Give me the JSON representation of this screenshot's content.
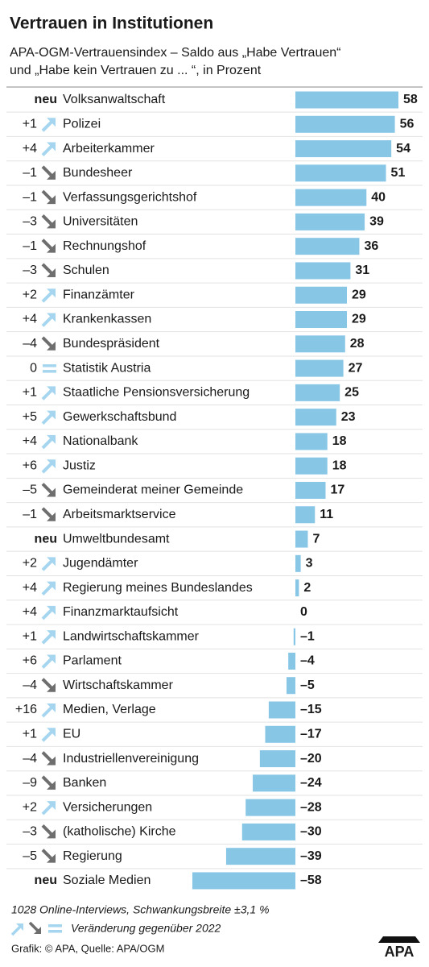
{
  "chart_data": {
    "type": "bar",
    "orientation": "horizontal",
    "title": "Vertrauen in Institutionen",
    "subtitle": [
      "APA-OGM-Vertrauensindex – Saldo aus „Habe Vertrauen“",
      "und „Habe kein Vertrauen zu ... “, in Prozent"
    ],
    "categories": [
      "Volksanwaltschaft",
      "Polizei",
      "Arbeiterkammer",
      "Bundesheer",
      "Verfassungsgerichtshof",
      "Universitäten",
      "Rechnungshof",
      "Schulen",
      "Finanzämter",
      "Krankenkassen",
      "Bundespräsident",
      "Statistik Austria",
      "Staatliche Pensionsversicherung",
      "Gewerkschaftsbund",
      "Nationalbank",
      "Justiz",
      "Gemeinderat meiner Gemeinde",
      "Arbeitsmarktservice",
      "Umweltbundesamt",
      "Jugendämter",
      "Regierung meines Bundeslandes",
      "Finanzmarktaufsicht",
      "Landwirtschaftskammer",
      "Parlament",
      "Wirtschaftskammer",
      "Medien, Verlage",
      "EU",
      "Industriellenvereinigung",
      "Banken",
      "Versicherungen",
      "(katholische) Kirche",
      "Regierung",
      "Soziale Medien"
    ],
    "changes": [
      "neu",
      "+1",
      "+4",
      "–1",
      "–1",
      "–3",
      "–1",
      "–3",
      "+2",
      "+4",
      "–4",
      "0",
      "+1",
      "+5",
      "+4",
      "+6",
      "–5",
      "–1",
      "neu",
      "+2",
      "+4",
      "+4",
      "+1",
      "+6",
      "–4",
      "+16",
      "+1",
      "–4",
      "–9",
      "+2",
      "–3",
      "–5",
      "neu"
    ],
    "values": [
      58,
      56,
      54,
      51,
      40,
      39,
      36,
      31,
      29,
      29,
      28,
      27,
      25,
      23,
      18,
      18,
      17,
      11,
      7,
      3,
      2,
      0,
      -1,
      -4,
      -5,
      -15,
      -17,
      -20,
      -24,
      -28,
      -30,
      -39,
      -58
    ],
    "value_labels": [
      "58",
      "56",
      "54",
      "51",
      "40",
      "39",
      "36",
      "31",
      "29",
      "29",
      "28",
      "27",
      "25",
      "23",
      "18",
      "18",
      "17",
      "11",
      "7",
      "3",
      "2",
      "0",
      "–1",
      "–4",
      "–5",
      "–15",
      "–17",
      "–20",
      "–24",
      "–28",
      "–30",
      "–39",
      "–58"
    ],
    "color": "#88c6e6",
    "note": "1028 Online-Interviews, Schwankungsbreite ±3,1 %",
    "legend_label": "Veränderung gegenüber 2022",
    "source": "Grafik: © APA, Quelle: APA/OGM",
    "logo": "APA"
  }
}
